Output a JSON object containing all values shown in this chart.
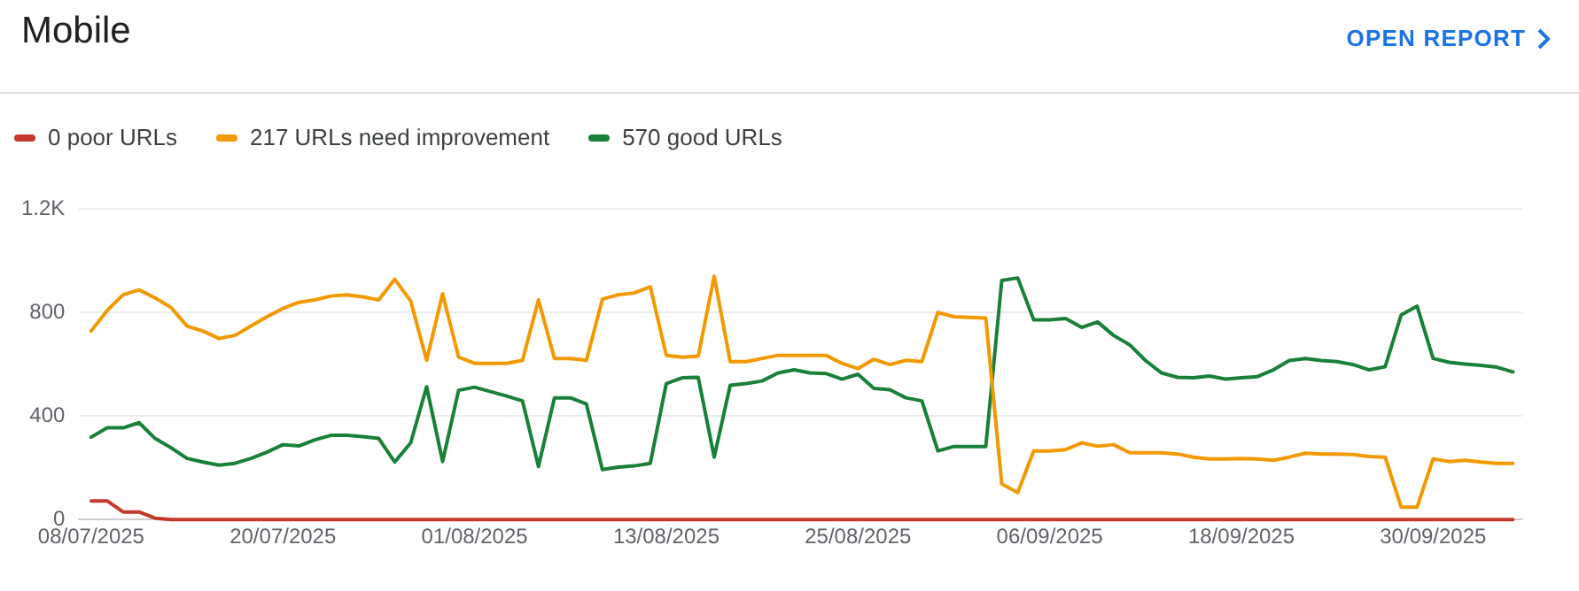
{
  "chart_data": {
    "type": "line",
    "title": "Mobile",
    "annotations": [
      "OPEN REPORT"
    ],
    "x": [
      "2025-07-08",
      "2025-07-09",
      "2025-07-10",
      "2025-07-11",
      "2025-07-12",
      "2025-07-13",
      "2025-07-14",
      "2025-07-15",
      "2025-07-16",
      "2025-07-17",
      "2025-07-18",
      "2025-07-19",
      "2025-07-20",
      "2025-07-21",
      "2025-07-22",
      "2025-07-23",
      "2025-07-24",
      "2025-07-25",
      "2025-07-26",
      "2025-07-27",
      "2025-07-28",
      "2025-07-29",
      "2025-07-30",
      "2025-07-31",
      "2025-08-01",
      "2025-08-02",
      "2025-08-03",
      "2025-08-04",
      "2025-08-05",
      "2025-08-06",
      "2025-08-07",
      "2025-08-08",
      "2025-08-09",
      "2025-08-10",
      "2025-08-11",
      "2025-08-12",
      "2025-08-13",
      "2025-08-14",
      "2025-08-15",
      "2025-08-16",
      "2025-08-17",
      "2025-08-18",
      "2025-08-19",
      "2025-08-20",
      "2025-08-21",
      "2025-08-22",
      "2025-08-23",
      "2025-08-24",
      "2025-08-25",
      "2025-08-26",
      "2025-08-27",
      "2025-08-28",
      "2025-08-29",
      "2025-08-30",
      "2025-08-31",
      "2025-09-01",
      "2025-09-02",
      "2025-09-03",
      "2025-09-04",
      "2025-09-05",
      "2025-09-06",
      "2025-09-07",
      "2025-09-08",
      "2025-09-09",
      "2025-09-10",
      "2025-09-11",
      "2025-09-12",
      "2025-09-13",
      "2025-09-14",
      "2025-09-15",
      "2025-09-16",
      "2025-09-17",
      "2025-09-18",
      "2025-09-19",
      "2025-09-20",
      "2025-09-21",
      "2025-09-22",
      "2025-09-23",
      "2025-09-24",
      "2025-09-25",
      "2025-09-26",
      "2025-09-27",
      "2025-09-28",
      "2025-09-29",
      "2025-09-30",
      "2025-10-01",
      "2025-10-02",
      "2025-10-03",
      "2025-10-04",
      "2025-10-05"
    ],
    "series": [
      {
        "name": "0 poor URLs",
        "color": "#c5392b",
        "values": [
          72,
          72,
          29,
          29,
          5,
          0,
          0,
          0,
          0,
          0,
          0,
          0,
          0,
          0,
          0,
          0,
          0,
          0,
          0,
          0,
          0,
          0,
          0,
          0,
          0,
          0,
          0,
          0,
          0,
          0,
          0,
          0,
          0,
          0,
          0,
          0,
          0,
          0,
          0,
          0,
          0,
          0,
          0,
          0,
          0,
          0,
          0,
          0,
          0,
          0,
          0,
          0,
          0,
          0,
          0,
          0,
          0,
          0,
          0,
          0,
          0,
          0,
          0,
          0,
          0,
          0,
          0,
          0,
          0,
          0,
          0,
          0,
          0,
          0,
          0,
          0,
          0,
          0,
          0,
          0,
          0,
          0,
          0,
          0,
          0,
          0,
          0,
          0,
          0,
          0
        ]
      },
      {
        "name": "217 URLs need improvement",
        "color": "#f29900",
        "values": [
          728,
          807,
          868,
          887,
          856,
          819,
          747,
          728,
          699,
          711,
          747,
          783,
          815,
          839,
          848,
          863,
          868,
          860,
          848,
          928,
          844,
          615,
          872,
          627,
          603,
          603,
          603,
          615,
          848,
          622,
          622,
          615,
          851,
          868,
          875,
          899,
          634,
          627,
          631,
          940,
          610,
          610,
          622,
          634,
          634,
          634,
          634,
          603,
          583,
          619,
          598,
          615,
          610,
          800,
          783,
          781,
          778,
          137,
          104,
          265,
          265,
          270,
          296,
          283,
          289,
          258,
          258,
          258,
          253,
          241,
          234,
          234,
          236,
          234,
          229,
          241,
          256,
          253,
          253,
          251,
          243,
          241,
          48,
          48,
          234,
          224,
          229,
          222,
          217,
          217
        ]
      },
      {
        "name": "570 good URLs",
        "color": "#188038",
        "values": [
          318,
          354,
          354,
          374,
          313,
          277,
          236,
          222,
          210,
          217,
          236,
          260,
          289,
          284,
          308,
          325,
          325,
          320,
          313,
          222,
          296,
          513,
          224,
          499,
          511,
          494,
          477,
          458,
          205,
          470,
          470,
          446,
          193,
          202,
          207,
          217,
          525,
          547,
          549,
          241,
          518,
          525,
          535,
          566,
          578,
          566,
          564,
          542,
          561,
          506,
          501,
          470,
          458,
          265,
          282,
          282,
          282,
          923,
          933,
          771,
          771,
          776,
          742,
          763,
          711,
          675,
          614,
          566,
          549,
          547,
          554,
          542,
          547,
          552,
          578,
          614,
          622,
          614,
          610,
          598,
          578,
          590,
          790,
          824,
          622,
          607,
          600,
          595,
          588,
          570
        ]
      }
    ],
    "xlim": [
      "2025-07-07T06:00",
      "2025-10-05T14:00"
    ],
    "xticks": [
      {
        "value": "2025-07-08",
        "label": "08/07/2025"
      },
      {
        "value": "2025-07-20",
        "label": "20/07/2025"
      },
      {
        "value": "2025-08-01",
        "label": "01/08/2025"
      },
      {
        "value": "2025-08-13",
        "label": "13/08/2025"
      },
      {
        "value": "2025-08-25",
        "label": "25/08/2025"
      },
      {
        "value": "2025-09-06",
        "label": "06/09/2025"
      },
      {
        "value": "2025-09-18",
        "label": "18/09/2025"
      },
      {
        "value": "2025-09-30",
        "label": "30/09/2025"
      }
    ],
    "ylim": [
      0,
      1200
    ],
    "yticks": [
      0,
      400,
      800,
      {
        "value": 1200,
        "label": "1.2K"
      }
    ],
    "grid": "y",
    "legend": "top left",
    "line_style": "solid"
  }
}
